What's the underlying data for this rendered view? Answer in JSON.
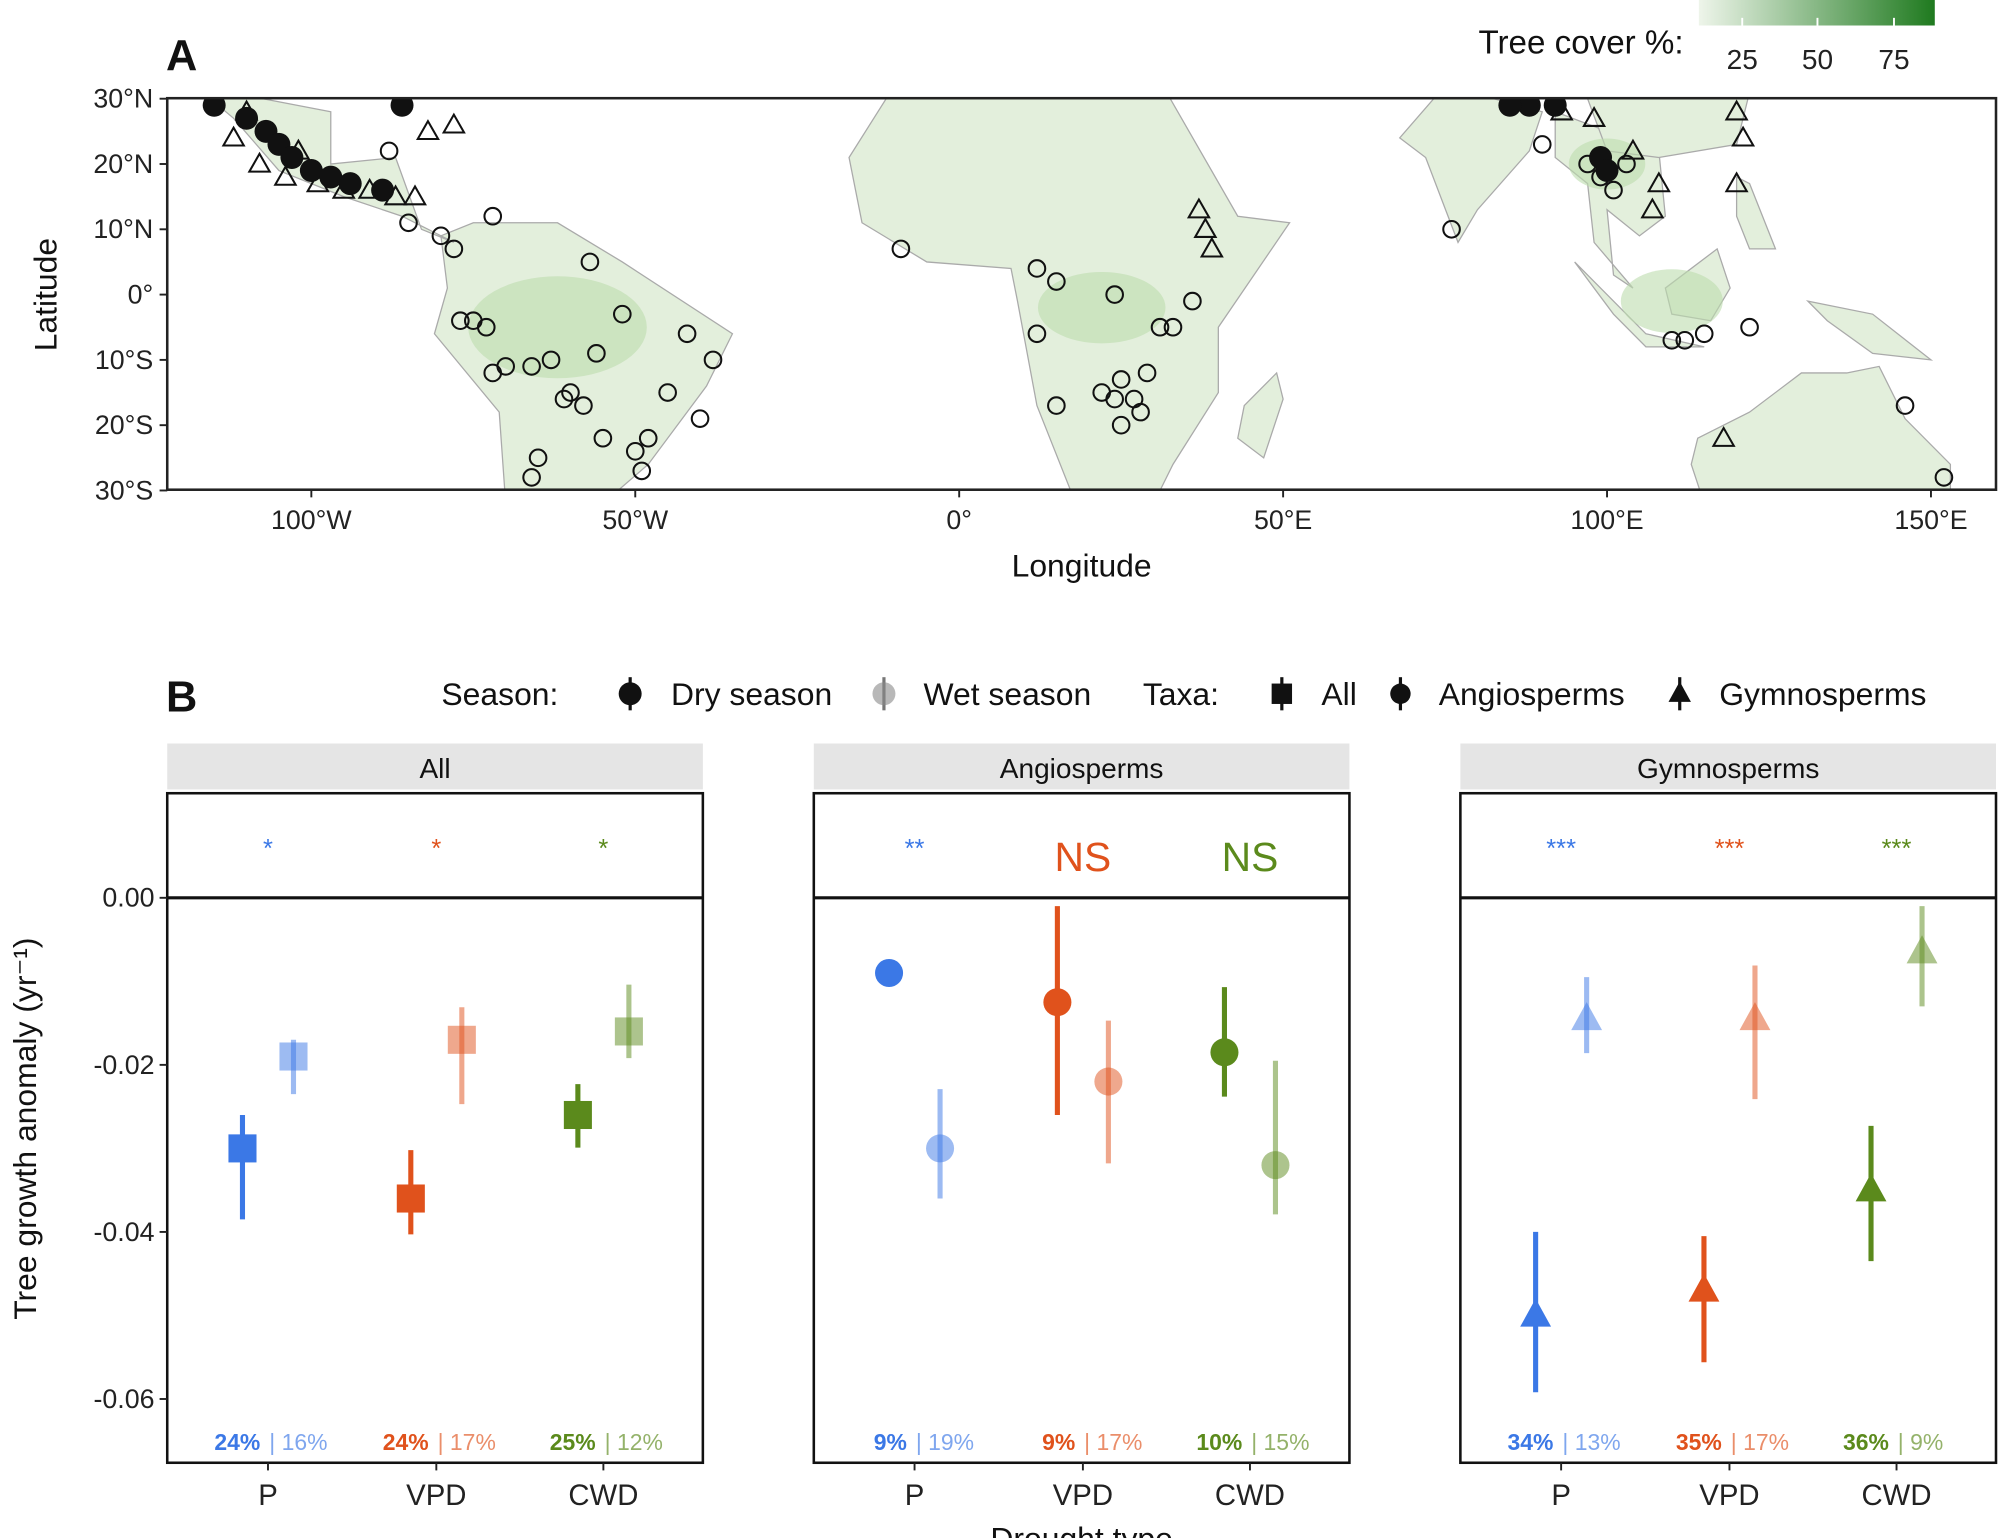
{
  "chart_data": [
    {
      "panel_label": "A",
      "type": "scatter",
      "xlabel": "Longitude",
      "ylabel": "Latitude",
      "xlim": [
        -120,
        162
      ],
      "ylim": [
        -30,
        30
      ],
      "x_ticks": [
        {
          "v": -100,
          "label": "100°W"
        },
        {
          "v": -50,
          "label": "50°W"
        },
        {
          "v": 0,
          "label": "0°"
        },
        {
          "v": 50,
          "label": "50°E"
        },
        {
          "v": 100,
          "label": "100°E"
        },
        {
          "v": 150,
          "label": "150°E"
        }
      ],
      "y_ticks": [
        {
          "v": 30,
          "label": "30°N"
        },
        {
          "v": 20,
          "label": "20°N"
        },
        {
          "v": 10,
          "label": "10°N"
        },
        {
          "v": 0,
          "label": "0°"
        },
        {
          "v": -10,
          "label": "10°S"
        },
        {
          "v": -20,
          "label": "20°S"
        },
        {
          "v": -30,
          "label": "30°S"
        }
      ],
      "legend": {
        "title": "Tree cover %:",
        "ticks": [
          "25",
          "50",
          "75"
        ],
        "colors": [
          "#eef5ea",
          "#1f7a1f"
        ],
        "placement": "top-right"
      },
      "sites": {
        "circle": [
          [
            -58,
            -17
          ],
          [
            -55,
            -22
          ],
          [
            -65,
            -25
          ],
          [
            -66,
            -28
          ],
          [
            -50,
            -24
          ],
          [
            -48,
            -22
          ],
          [
            -45,
            -15
          ],
          [
            -38,
            -10
          ],
          [
            -42,
            -6
          ],
          [
            -56,
            -9
          ],
          [
            -63,
            -10
          ],
          [
            -70,
            -11
          ],
          [
            -72,
            -12
          ],
          [
            -75,
            -4
          ],
          [
            -73,
            -5
          ],
          [
            -52,
            -3
          ],
          [
            -57,
            5
          ],
          [
            -78,
            7
          ],
          [
            -80,
            9
          ],
          [
            -72,
            12
          ],
          [
            -85,
            11
          ],
          [
            -40,
            -19
          ],
          [
            -49,
            -27
          ],
          [
            -60,
            -15
          ],
          [
            -66,
            -11
          ],
          [
            -77,
            -4
          ],
          [
            -61,
            -16
          ],
          [
            -9,
            7
          ],
          [
            12,
            4
          ],
          [
            15,
            2
          ],
          [
            24,
            0
          ],
          [
            12,
            -6
          ],
          [
            15,
            -17
          ],
          [
            22,
            -15
          ],
          [
            25,
            -13
          ],
          [
            27,
            -16
          ],
          [
            29,
            -12
          ],
          [
            31,
            -5
          ],
          [
            33,
            -5
          ],
          [
            36,
            -1
          ],
          [
            25,
            -20
          ],
          [
            28,
            -18
          ],
          [
            24,
            -16
          ],
          [
            76,
            10
          ],
          [
            90,
            23
          ],
          [
            97,
            20
          ],
          [
            99,
            18
          ],
          [
            101,
            16
          ],
          [
            103,
            20
          ],
          [
            110,
            -7
          ],
          [
            112,
            -7
          ],
          [
            115,
            -6
          ],
          [
            122,
            -5
          ],
          [
            146,
            -17
          ],
          [
            152,
            -28
          ],
          [
            -88,
            22
          ]
        ],
        "triangle": [
          [
            -112,
            24
          ],
          [
            -108,
            20
          ],
          [
            -104,
            18
          ],
          [
            -99,
            17
          ],
          [
            -95,
            16
          ],
          [
            -91,
            16
          ],
          [
            -87,
            15
          ],
          [
            -84,
            15
          ],
          [
            -78,
            26
          ],
          [
            -82,
            25
          ],
          [
            -110,
            28
          ],
          [
            -102,
            22
          ],
          [
            37,
            13
          ],
          [
            38,
            10
          ],
          [
            39,
            7
          ],
          [
            120,
            28
          ],
          [
            121,
            24
          ],
          [
            120,
            17
          ],
          [
            107,
            13
          ],
          [
            108,
            17
          ],
          [
            104,
            22
          ],
          [
            118,
            -22
          ],
          [
            93,
            28
          ],
          [
            98,
            27
          ]
        ],
        "dense": [
          [
            -110,
            27
          ],
          [
            -107,
            25
          ],
          [
            -105,
            23
          ],
          [
            -103,
            21
          ],
          [
            -100,
            19
          ],
          [
            -97,
            18
          ],
          [
            -94,
            17
          ],
          [
            -89,
            16
          ],
          [
            -86,
            29
          ],
          [
            88,
            29
          ],
          [
            85,
            29
          ],
          [
            92,
            29
          ],
          [
            99,
            21
          ],
          [
            100,
            19
          ],
          [
            -115,
            29
          ]
        ]
      }
    },
    {
      "panel_label": "B",
      "type": "scatter",
      "xlabel": "Drought type",
      "ylabel": "Tree growth anomaly  (yr⁻¹)",
      "ylim": [
        -0.0676,
        0.0125
      ],
      "y_ticks": [
        "0.00",
        "-0.02",
        "-0.04",
        "-0.06"
      ],
      "y_tick_values": [
        0,
        -0.02,
        -0.04,
        -0.06
      ],
      "categories": [
        "P",
        "VPD",
        "CWD"
      ],
      "category_colors": {
        "P": "#3b78e6",
        "VPD": "#e0521c",
        "CWD": "#5b8a1c"
      },
      "legend": {
        "season_title": "Season:",
        "season_items": [
          "Dry season",
          "Wet season"
        ],
        "taxa_title": "Taxa:",
        "taxa_items": [
          "All",
          "Angiosperms",
          "Gymnosperms"
        ],
        "placement": "top"
      },
      "facets": [
        {
          "name": "All",
          "shape": "square",
          "significance": [
            "*",
            "*",
            "*"
          ],
          "percent_dry": [
            "24%",
            "24%",
            "25%"
          ],
          "percent_wet": [
            "16%",
            "17%",
            "12%"
          ],
          "dry": [
            {
              "y": -0.03,
              "lo": -0.0385,
              "hi": -0.026
            },
            {
              "y": -0.036,
              "lo": -0.0403,
              "hi": -0.0302
            },
            {
              "y": -0.026,
              "lo": -0.0299,
              "hi": -0.0223
            }
          ],
          "wet": [
            {
              "y": -0.019,
              "lo": -0.0235,
              "hi": -0.017
            },
            {
              "y": -0.017,
              "lo": -0.0247,
              "hi": -0.0131
            },
            {
              "y": -0.016,
              "lo": -0.0192,
              "hi": -0.0104
            }
          ]
        },
        {
          "name": "Angiosperms",
          "shape": "circle",
          "significance": [
            "**",
            "NS",
            "NS"
          ],
          "percent_dry": [
            "9%",
            "9%",
            "10%"
          ],
          "percent_wet": [
            "19%",
            "17%",
            "15%"
          ],
          "dry": [
            {
              "y": -0.009,
              "lo": -0.009,
              "hi": -0.009
            },
            {
              "y": -0.0125,
              "lo": -0.026,
              "hi": -0.001
            },
            {
              "y": -0.0185,
              "lo": -0.0238,
              "hi": -0.0107
            }
          ],
          "wet": [
            {
              "y": -0.03,
              "lo": -0.036,
              "hi": -0.0229
            },
            {
              "y": -0.022,
              "lo": -0.0318,
              "hi": -0.0147
            },
            {
              "y": -0.032,
              "lo": -0.0379,
              "hi": -0.0195
            }
          ]
        },
        {
          "name": "Gymnosperms",
          "shape": "triangle",
          "significance": [
            "***",
            "***",
            "***"
          ],
          "percent_dry": [
            "34%",
            "35%",
            "36%"
          ],
          "percent_wet": [
            "13%",
            "17%",
            "9%"
          ],
          "dry": [
            {
              "y": -0.05,
              "lo": -0.0592,
              "hi": -0.04
            },
            {
              "y": -0.047,
              "lo": -0.0556,
              "hi": -0.0405
            },
            {
              "y": -0.035,
              "lo": -0.0435,
              "hi": -0.0273
            }
          ],
          "wet": [
            {
              "y": -0.0145,
              "lo": -0.0186,
              "hi": -0.0095
            },
            {
              "y": -0.0145,
              "lo": -0.0241,
              "hi": -0.0081
            },
            {
              "y": -0.0065,
              "lo": -0.013,
              "hi": -0.001
            }
          ]
        }
      ]
    }
  ]
}
